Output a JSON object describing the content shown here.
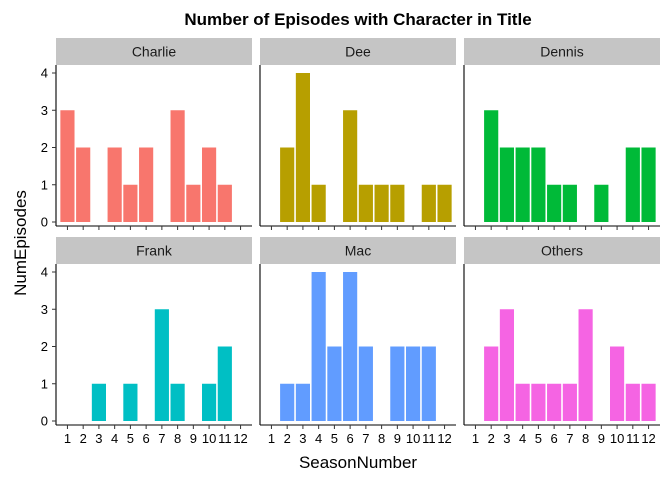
{
  "chart_data": {
    "type": "bar",
    "title": "Number of Episodes with Character in Title",
    "xlabel": "SeasonNumber",
    "ylabel": "NumEpisodes",
    "ylim": [
      0,
      4
    ],
    "yticks": [
      0,
      1,
      2,
      3,
      4
    ],
    "x": [
      1,
      2,
      3,
      4,
      5,
      6,
      7,
      8,
      9,
      10,
      11,
      12
    ],
    "facets": [
      {
        "label": "Charlie",
        "color": "#F8766D",
        "values": [
          3,
          2,
          0,
          2,
          1,
          2,
          0,
          3,
          1,
          2,
          1,
          0
        ]
      },
      {
        "label": "Dee",
        "color": "#B79F00",
        "values": [
          0,
          2,
          4,
          1,
          0,
          3,
          1,
          1,
          1,
          0,
          1,
          1
        ]
      },
      {
        "label": "Dennis",
        "color": "#00BA38",
        "values": [
          0,
          3,
          2,
          2,
          2,
          1,
          1,
          0,
          1,
          0,
          2,
          2
        ]
      },
      {
        "label": "Frank",
        "color": "#00BFC4",
        "values": [
          0,
          0,
          1,
          0,
          1,
          0,
          3,
          1,
          0,
          1,
          2,
          0
        ]
      },
      {
        "label": "Mac",
        "color": "#619CFF",
        "values": [
          0,
          1,
          1,
          4,
          2,
          4,
          2,
          0,
          2,
          2,
          2,
          0
        ]
      },
      {
        "label": "Others",
        "color": "#F564E3",
        "values": [
          0,
          2,
          3,
          1,
          1,
          1,
          1,
          3,
          0,
          2,
          1,
          1
        ]
      }
    ],
    "strip_fill": "#C5C5C5",
    "grid": false,
    "legend": "none"
  }
}
